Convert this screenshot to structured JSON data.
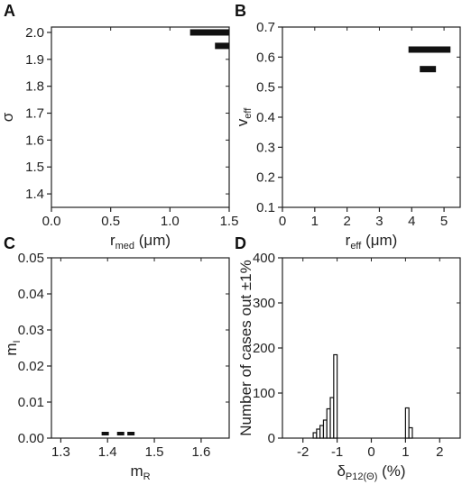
{
  "chart_data": [
    {
      "panel": "A",
      "type": "bar",
      "orientation": "horizontal-range",
      "xlabel": "r",
      "xlabel_sub": "med",
      "xlabel_unit": " (μm)",
      "ylabel": "σ",
      "xlim": [
        0.0,
        1.5
      ],
      "ylim": [
        1.35,
        2.02
      ],
      "xticks": [
        0.0,
        0.5,
        1.0,
        1.5
      ],
      "xtick_labels": [
        "0.0",
        "0.5",
        "1.0",
        "1.5"
      ],
      "yticks": [
        1.4,
        1.5,
        1.6,
        1.7,
        1.8,
        1.9,
        2.0
      ],
      "ytick_labels": [
        "1.4",
        "1.5",
        "1.6",
        "1.7",
        "1.8",
        "1.9",
        "2.0"
      ],
      "bars": [
        {
          "y": 2.0,
          "x0": 1.17,
          "x1": 1.5
        },
        {
          "y": 1.95,
          "x0": 1.38,
          "x1": 1.5
        }
      ]
    },
    {
      "panel": "B",
      "type": "bar",
      "orientation": "horizontal-range",
      "xlabel": "r",
      "xlabel_sub": "eff",
      "xlabel_unit": " (μm)",
      "ylabel": "v",
      "ylabel_sub": "eff",
      "xlim": [
        0,
        5.5
      ],
      "ylim": [
        0.1,
        0.7
      ],
      "xticks": [
        0,
        1,
        2,
        3,
        4,
        5
      ],
      "xtick_labels": [
        "0",
        "1",
        "2",
        "3",
        "4",
        "5"
      ],
      "yticks": [
        0.1,
        0.2,
        0.3,
        0.4,
        0.5,
        0.6,
        0.7
      ],
      "ytick_labels": [
        "0.1",
        "0.2",
        "0.3",
        "0.4",
        "0.5",
        "0.6",
        "0.7"
      ],
      "bars": [
        {
          "y": 0.625,
          "x0": 3.9,
          "x1": 5.2
        },
        {
          "y": 0.56,
          "x0": 4.25,
          "x1": 4.75
        }
      ]
    },
    {
      "panel": "C",
      "type": "scatter",
      "xlabel": "m",
      "xlabel_sub": "R",
      "xlabel_unit": "",
      "ylabel": "m",
      "ylabel_sub": "I",
      "xlim": [
        1.28,
        1.66
      ],
      "ylim": [
        0.0,
        0.05
      ],
      "xticks": [
        1.3,
        1.4,
        1.5,
        1.6
      ],
      "xtick_labels": [
        "1.3",
        "1.4",
        "1.5",
        "1.6"
      ],
      "yticks": [
        0.0,
        0.01,
        0.02,
        0.03,
        0.04,
        0.05
      ],
      "ytick_labels": [
        "0.00",
        "0.01",
        "0.02",
        "0.03",
        "0.04",
        "0.05"
      ],
      "points": [
        {
          "x": 1.395,
          "y": 0.0005
        },
        {
          "x": 1.428,
          "y": 0.0005
        },
        {
          "x": 1.45,
          "y": 0.0005
        }
      ]
    },
    {
      "panel": "D",
      "type": "bar",
      "orientation": "histogram",
      "xlabel": "δ",
      "xlabel_sub": "P12(Θ)",
      "xlabel_unit": " (%)",
      "ylabel": "Number of cases out ±1%",
      "xlim": [
        -2.6,
        2.6
      ],
      "ylim": [
        0,
        400
      ],
      "xticks": [
        -2,
        -1,
        0,
        1,
        2
      ],
      "xtick_labels": [
        "-2",
        "-1",
        "0",
        "1",
        "2"
      ],
      "yticks": [
        0,
        100,
        200,
        300,
        400
      ],
      "ytick_labels": [
        "0",
        "100",
        "200",
        "300",
        "400"
      ],
      "bin_width": 0.1,
      "bins": [
        {
          "x0": -1.7,
          "value": 12
        },
        {
          "x0": -1.6,
          "value": 20
        },
        {
          "x0": -1.5,
          "value": 28
        },
        {
          "x0": -1.4,
          "value": 40
        },
        {
          "x0": -1.3,
          "value": 65
        },
        {
          "x0": -1.2,
          "value": 90
        },
        {
          "x0": -1.1,
          "value": 185
        },
        {
          "x0": 1.0,
          "value": 67
        },
        {
          "x0": 1.1,
          "value": 23
        }
      ]
    }
  ],
  "panel_letters": [
    "A",
    "B",
    "C",
    "D"
  ],
  "colors": {
    "mark": "#111111",
    "axis": "#222222",
    "bar_fill": "#ffffff"
  }
}
